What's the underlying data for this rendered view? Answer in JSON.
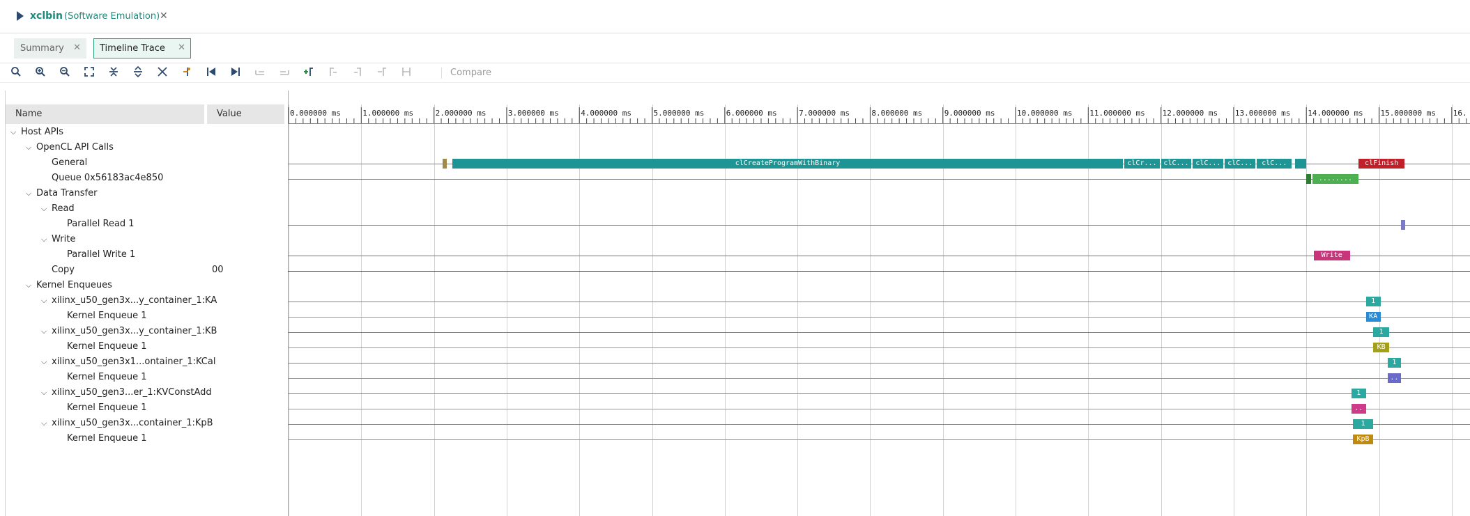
{
  "title": {
    "name": "xclbin",
    "subtitle": "(Software Emulation)",
    "close": "✕"
  },
  "tabs": [
    {
      "label": "Summary",
      "close": "✕"
    },
    {
      "label": "Timeline Trace",
      "close": "✕"
    }
  ],
  "toolbar": {
    "compare_label": "Compare",
    "icons": [
      "search-icon",
      "zoom-in-icon",
      "zoom-out-icon",
      "zoom-fit-icon",
      "collapse-all-icon",
      "expand-all-icon",
      "clear-marker-icon",
      "add-marker-icon",
      "go-first-icon",
      "go-last-icon",
      "prev-event-icon",
      "next-event-icon",
      "add-marker-green-icon",
      "align-left-icon",
      "align-right-icon",
      "align-start-icon",
      "align-center-icon"
    ]
  },
  "tree": {
    "header_name": "Name",
    "header_value": "Value",
    "rows": [
      {
        "label": "Host APIs",
        "value": ""
      },
      {
        "label": "OpenCL API Calls",
        "value": ""
      },
      {
        "label": "General",
        "value": ""
      },
      {
        "label": "Queue 0x56183ac4e850",
        "value": ""
      },
      {
        "label": "Data Transfer",
        "value": ""
      },
      {
        "label": "Read",
        "value": ""
      },
      {
        "label": "Parallel Read 1",
        "value": ""
      },
      {
        "label": "Write",
        "value": ""
      },
      {
        "label": "Parallel Write 1",
        "value": ""
      },
      {
        "label": "Copy",
        "value": "00"
      },
      {
        "label": "Kernel Enqueues",
        "value": ""
      },
      {
        "label": "xilinx_u50_gen3x...y_container_1:KA",
        "value": ""
      },
      {
        "label": "Kernel Enqueue 1",
        "value": ""
      },
      {
        "label": "xilinx_u50_gen3x...y_container_1:KB",
        "value": ""
      },
      {
        "label": "Kernel Enqueue 1",
        "value": ""
      },
      {
        "label": "xilinx_u50_gen3x1...ontainer_1:KCal",
        "value": ""
      },
      {
        "label": "Kernel Enqueue 1",
        "value": ""
      },
      {
        "label": "xilinx_u50_gen3...er_1:KVConstAdd",
        "value": ""
      },
      {
        "label": "Kernel Enqueue 1",
        "value": ""
      },
      {
        "label": "xilinx_u50_gen3x...container_1:KpB",
        "value": ""
      },
      {
        "label": "Kernel Enqueue 1",
        "value": ""
      }
    ]
  },
  "timeline": {
    "ms_per_division": 1,
    "ticks": [
      "0.000000 ms",
      "1.000000 ms",
      "2.000000 ms",
      "3.000000 ms",
      "4.000000 ms",
      "5.000000 ms",
      "6.000000 ms",
      "7.000000 ms",
      "8.000000 ms",
      "9.000000 ms",
      "10.000000 ms",
      "11.000000 ms",
      "12.000000 ms",
      "13.000000 ms",
      "14.000000 ms",
      "15.000000 ms",
      "16."
    ],
    "events": [
      {
        "row": 2,
        "start_ms": 2.12,
        "end_ms": 2.18,
        "label": "",
        "color": "#a08a4a"
      },
      {
        "row": 2,
        "start_ms": 2.25,
        "end_ms": 11.48,
        "label": "clCreateProgramWithBinary",
        "color": "#1f9494"
      },
      {
        "row": 2,
        "start_ms": 11.5,
        "end_ms": 11.98,
        "label": "clCr...",
        "color": "#1f9494"
      },
      {
        "row": 2,
        "start_ms": 12.0,
        "end_ms": 12.42,
        "label": "clC...",
        "color": "#1f9494"
      },
      {
        "row": 2,
        "start_ms": 12.44,
        "end_ms": 12.86,
        "label": "clC...",
        "color": "#1f9494"
      },
      {
        "row": 2,
        "start_ms": 12.88,
        "end_ms": 13.3,
        "label": "clC...",
        "color": "#1f9494"
      },
      {
        "row": 2,
        "start_ms": 13.32,
        "end_ms": 13.8,
        "label": "clC...",
        "color": "#1f9494"
      },
      {
        "row": 2,
        "start_ms": 13.84,
        "end_ms": 14.0,
        "label": "",
        "color": "#1f9494"
      },
      {
        "row": 2,
        "start_ms": 14.72,
        "end_ms": 15.35,
        "label": "clFinish",
        "color": "#c0202a"
      },
      {
        "row": 3,
        "start_ms": 14.0,
        "end_ms": 14.07,
        "label": "",
        "color": "#2e7d32"
      },
      {
        "row": 3,
        "start_ms": 14.08,
        "end_ms": 14.72,
        "label": "........",
        "color": "#4caf50"
      },
      {
        "row": 6,
        "start_ms": 15.3,
        "end_ms": 15.36,
        "label": "",
        "color": "#7a7ac8"
      },
      {
        "row": 8,
        "start_ms": 14.1,
        "end_ms": 14.6,
        "label": "Write",
        "color": "#c8357a"
      },
      {
        "row": 11,
        "start_ms": 14.82,
        "end_ms": 15.02,
        "label": "1",
        "color": "#2ba8a0"
      },
      {
        "row": 12,
        "start_ms": 14.82,
        "end_ms": 15.02,
        "label": "KA",
        "color": "#2a8ad4"
      },
      {
        "row": 13,
        "start_ms": 14.92,
        "end_ms": 15.14,
        "label": "1",
        "color": "#2ba8a0"
      },
      {
        "row": 14,
        "start_ms": 14.92,
        "end_ms": 15.14,
        "label": "KB",
        "color": "#a4a018"
      },
      {
        "row": 15,
        "start_ms": 15.12,
        "end_ms": 15.3,
        "label": "1",
        "color": "#2ba8a0"
      },
      {
        "row": 16,
        "start_ms": 15.12,
        "end_ms": 15.3,
        "label": "..",
        "color": "#6a6ac8"
      },
      {
        "row": 17,
        "start_ms": 14.62,
        "end_ms": 14.82,
        "label": "1",
        "color": "#2ba8a0"
      },
      {
        "row": 18,
        "start_ms": 14.62,
        "end_ms": 14.82,
        "label": "..",
        "color": "#d03a8a"
      },
      {
        "row": 19,
        "start_ms": 14.64,
        "end_ms": 14.92,
        "label": "1",
        "color": "#2ba8a0"
      },
      {
        "row": 20,
        "start_ms": 14.64,
        "end_ms": 14.92,
        "label": "KpB",
        "color": "#c08a10"
      }
    ],
    "row_line_colors": [
      "#ffffff",
      "#ffffff",
      "#7a7aa8",
      "#7a7aa8",
      "#ffffff",
      "#ffffff",
      "#7a7aa8",
      "#ffffff",
      "#d0408a",
      "#2d4a6e",
      "#ffffff",
      "#2ba8a0",
      "#b0a020",
      "#2ba8a0",
      "#b0a020",
      "#2ba8a0",
      "#b0a020",
      "#2ba8a0",
      "#b0a020",
      "#2ba8a0",
      "#b0a020"
    ]
  }
}
